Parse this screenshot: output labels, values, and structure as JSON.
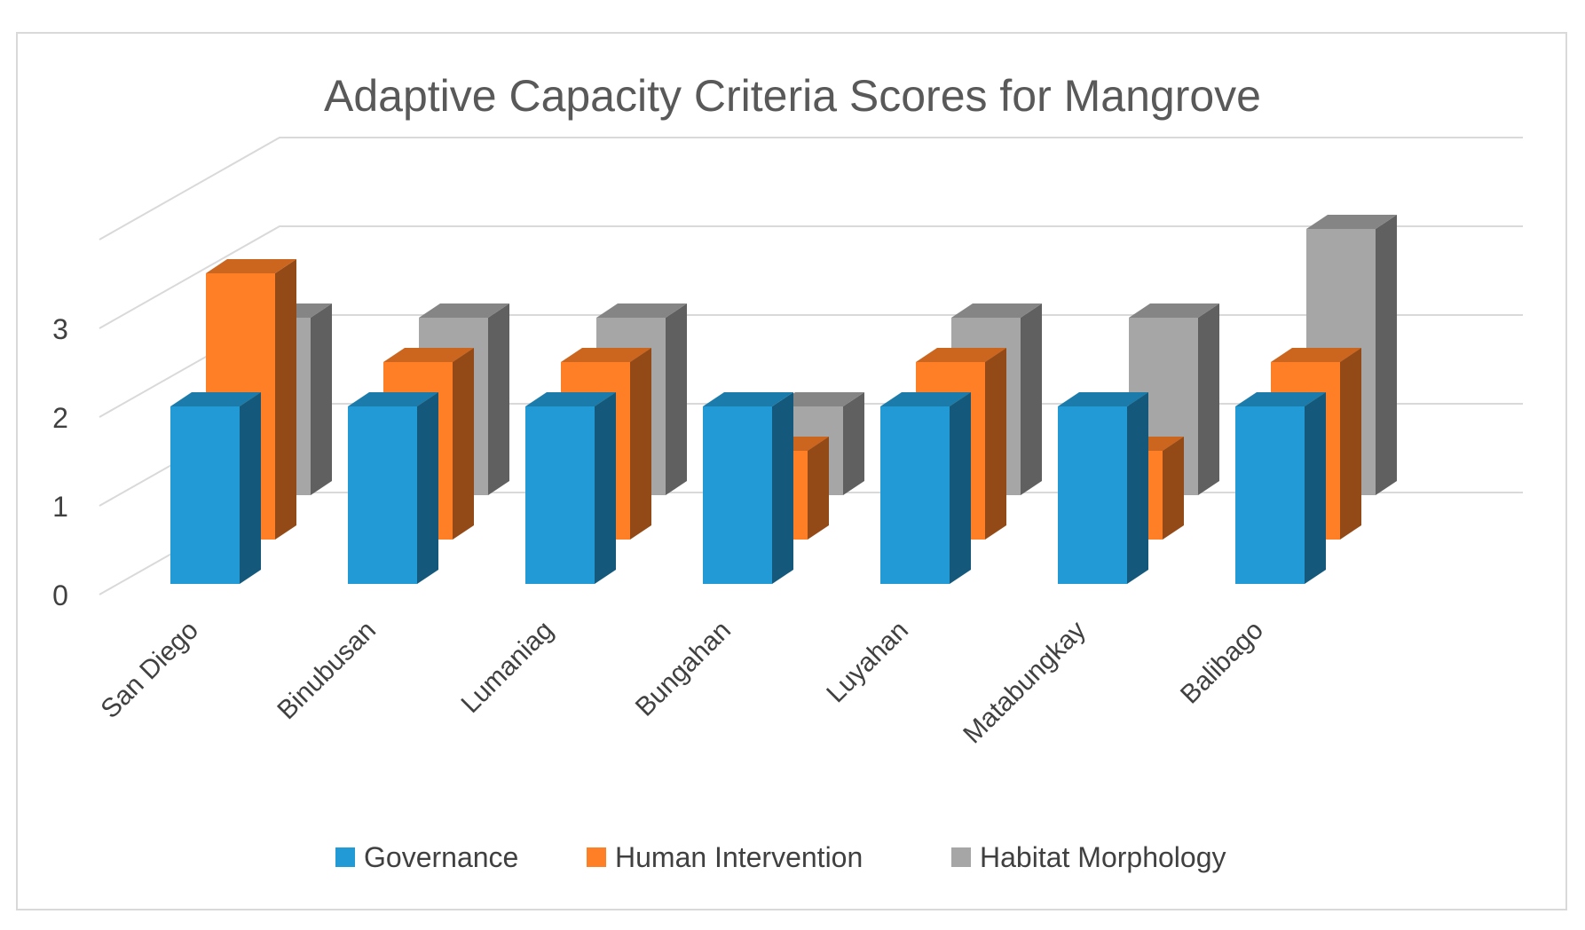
{
  "chart_data": {
    "type": "bar",
    "title": "Adaptive Capacity Criteria Scores for Mangrove",
    "xlabel": "",
    "ylabel": "",
    "categories": [
      "San Diego",
      "Binubusan",
      "Lumaniag",
      "Bungahan",
      "Luyahan",
      "Matabungkay",
      "Balibago"
    ],
    "series": [
      {
        "name": "Governance",
        "values": [
          2,
          2,
          2,
          2,
          2,
          2,
          2
        ],
        "color": "#229ad6"
      },
      {
        "name": "Human Intervention",
        "values": [
          3,
          2,
          2,
          1,
          2,
          1,
          2
        ],
        "color": "#ff7f27"
      },
      {
        "name": "Habitat Morphology",
        "values": [
          2,
          2,
          2,
          1,
          2,
          2,
          3
        ],
        "color": "#a6a6a6"
      }
    ],
    "y_ticks": [
      "0",
      "1",
      "2",
      "3"
    ],
    "ylim": [
      0,
      4
    ],
    "legend_position": "bottom",
    "grid": true
  }
}
